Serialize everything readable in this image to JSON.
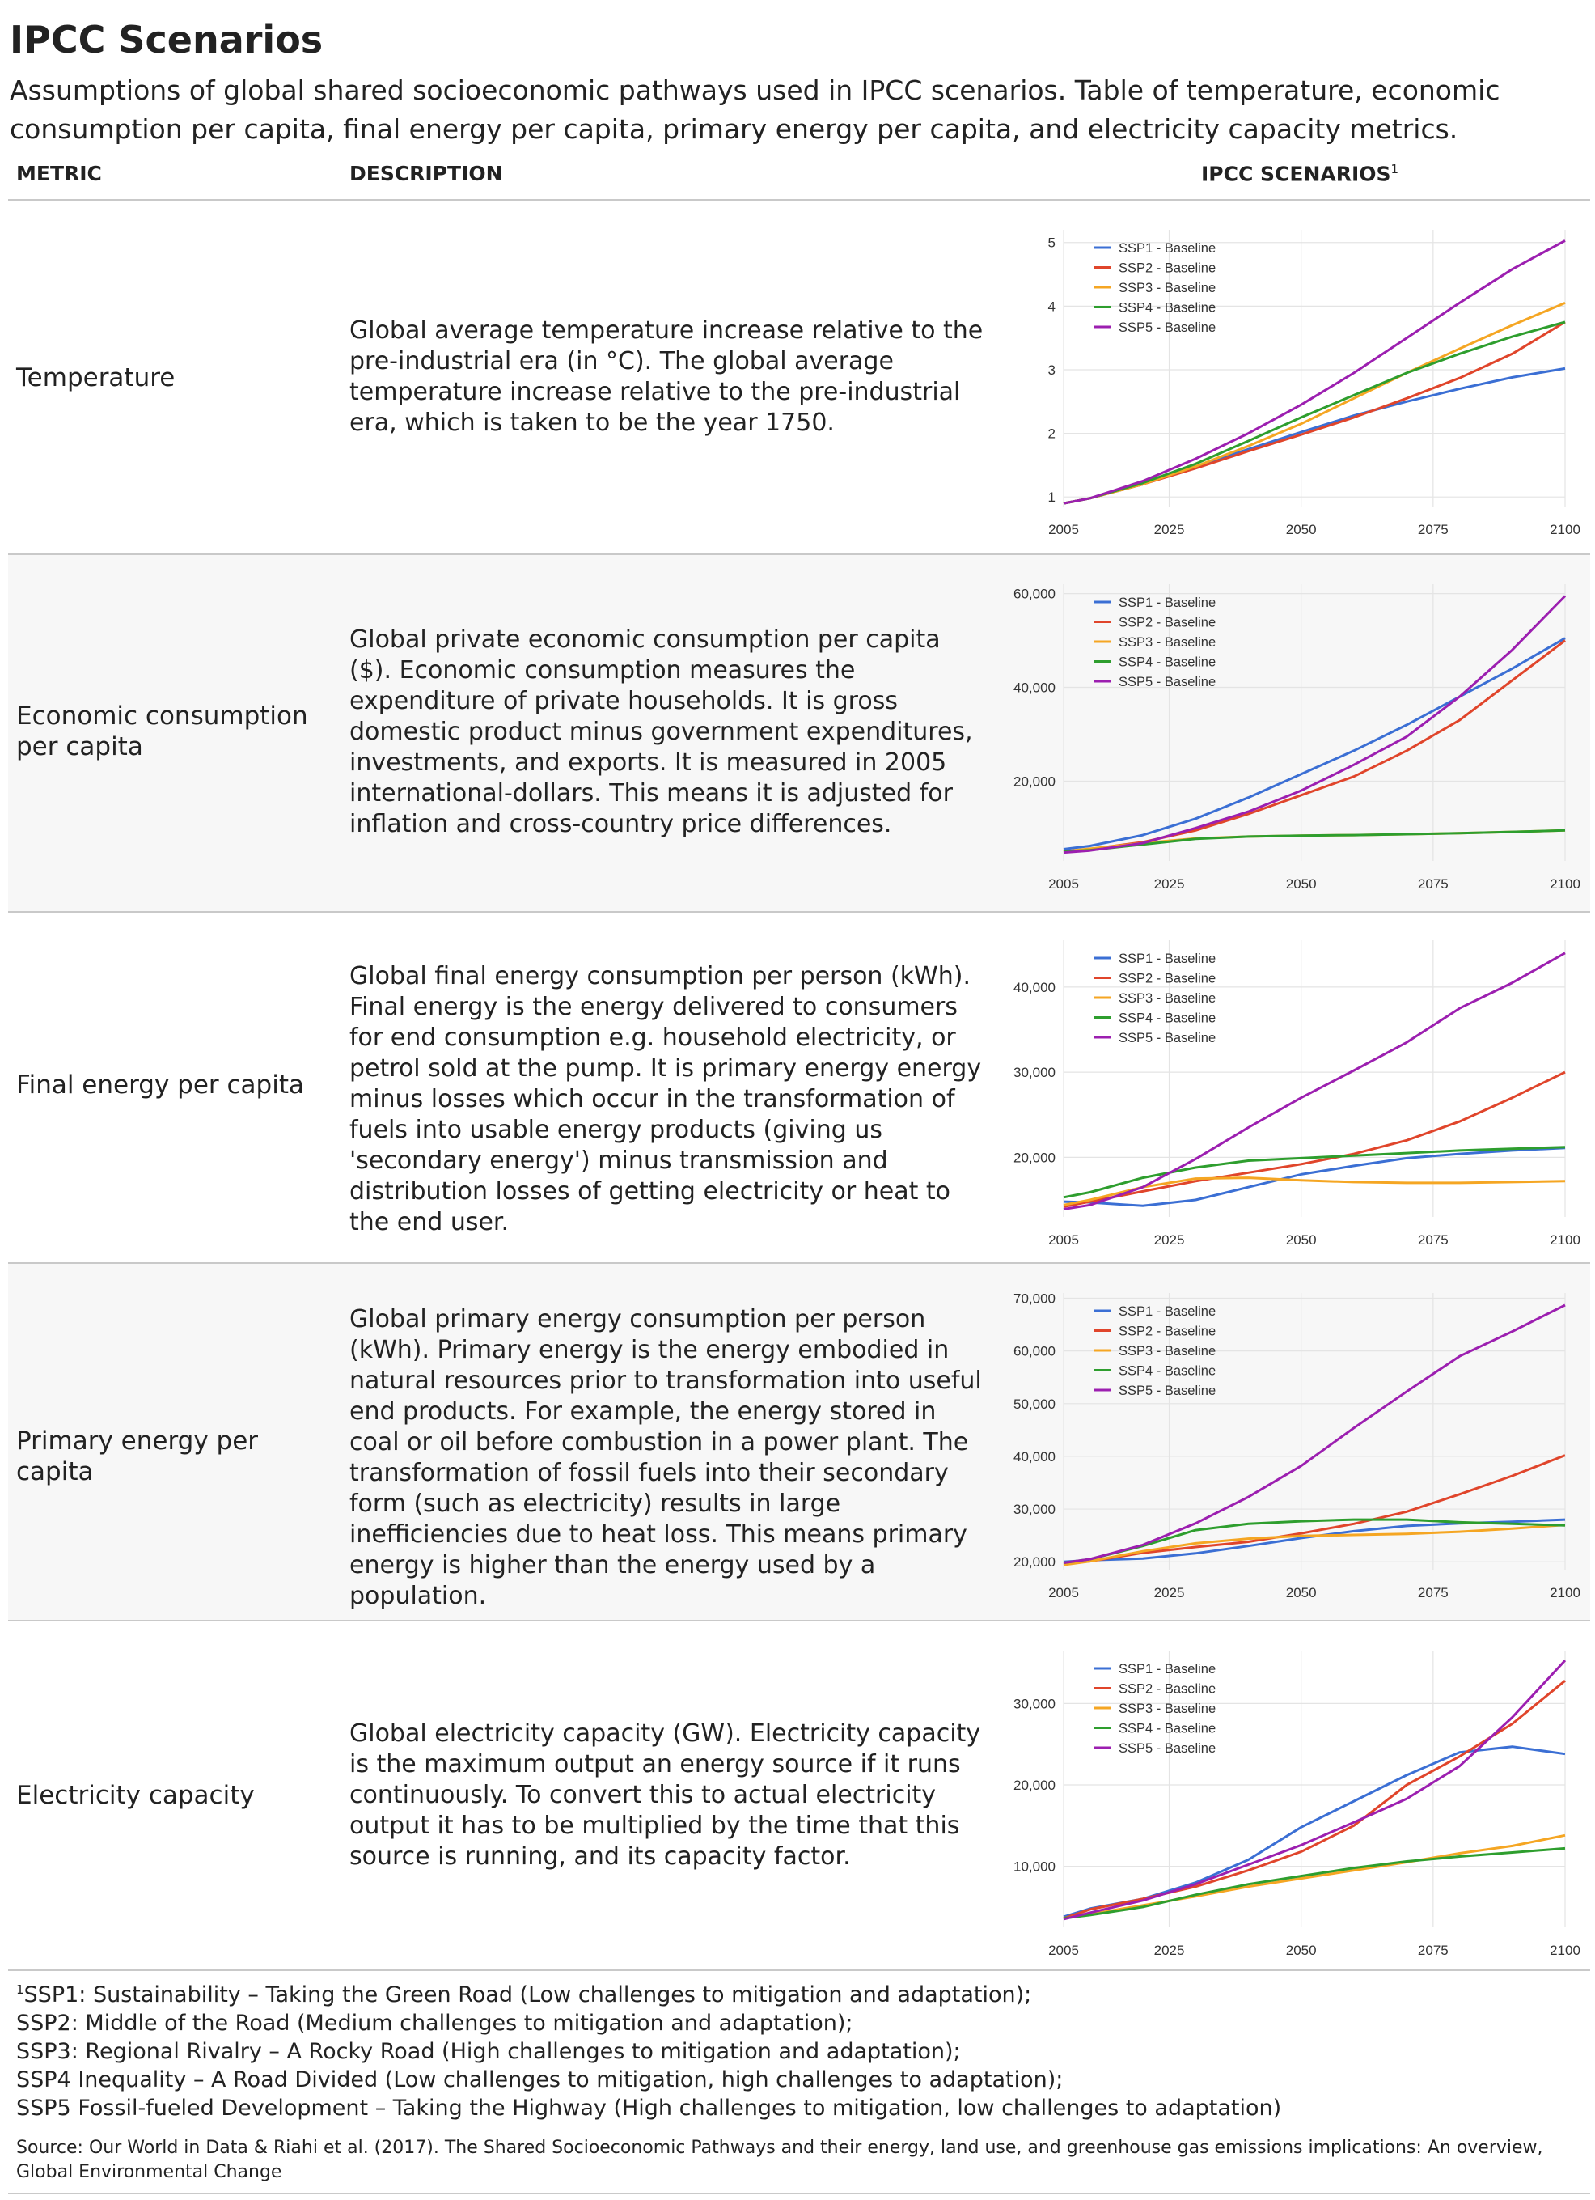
{
  "header": {
    "title": "IPCC Scenarios",
    "subtitle": "Assumptions of global shared socioeconomic pathways used in IPCC scenarios. Table of temperature, economic consumption per capita, final energy per capita, primary energy per capita, and electricity capacity metrics."
  },
  "columns": {
    "metric": "METRIC",
    "description": "DESCRIPTION",
    "scenarios": "IPCC SCENARIOS",
    "scenarios_sup": "1"
  },
  "colors": {
    "SSP1": "#3b6fd4",
    "SSP2": "#e0452b",
    "SSP3": "#f5a623",
    "SSP4": "#2e9e2e",
    "SSP5": "#9c1fb0",
    "grid": "#e4e4e4"
  },
  "rows": [
    {
      "metric": "Temperature",
      "description": "Global average temperature increase relative to the pre-industrial era (in °C). The global average temperature increase relative to the pre-industrial era, which is taken to be the year 1750."
    },
    {
      "metric": "Economic consumption per capita",
      "description": "Global private economic consumption per capita ($). Economic consumption measures the expenditure of private households. It is gross domestic product minus government expenditures, investments, and exports. It is measured in 2005 international-dollars. This means it is adjusted for inflation and cross-country price differences."
    },
    {
      "metric": "Final energy per capita",
      "description": "Global final energy consumption per person (kWh). Final energy is the energy delivered to consumers for end consumption e.g. household electricity, or petrol sold at the pump. It is primary energy energy minus losses which occur in the transformation of fuels into usable energy products (giving us 'secondary energy') minus transmission and distribution losses of getting electricity or heat to the end user."
    },
    {
      "metric": "Primary energy per capita",
      "description": "Global primary energy consumption per person (kWh). Primary energy is the energy embodied in natural resources prior to transformation into useful end products. For example, the energy stored in coal or oil before combustion in a power plant. The transformation of fossil fuels into their secondary form (such as electricity) results in large inefficiencies due to heat loss. This means primary energy is higher than the energy used by a population."
    },
    {
      "metric": "Electricity capacity",
      "description": "Global electricity capacity (GW). Electricity capacity is the maximum output an energy source if it runs continuously. To convert this to actual electricity output it has to be multiplied by the time that this source is running, and its capacity factor."
    }
  ],
  "footnote": {
    "marker": "1",
    "lines": [
      "SSP1: Sustainability – Taking the Green Road (Low challenges to mitigation and adaptation);",
      "SSP2: Middle of the Road (Medium challenges to mitigation and adaptation);",
      "SSP3: Regional Rivalry – A Rocky Road (High challenges to mitigation and adaptation);",
      "SSP4 Inequality – A Road Divided (Low challenges to mitigation, high challenges to adaptation);",
      "SSP5 Fossil-fueled Development – Taking the Highway (High challenges to mitigation, low challenges to adaptation)"
    ]
  },
  "source": "Source: Our World in Data & Riahi et al. (2017). The Shared Socioeconomic Pathways and their energy, land use, and greenhouse gas emissions implications: An overview, Global Environmental Change",
  "chart_data": [
    {
      "type": "line",
      "x": [
        2005,
        2010,
        2020,
        2030,
        2040,
        2050,
        2060,
        2070,
        2080,
        2090,
        2100
      ],
      "xlim": [
        2005,
        2100
      ],
      "xticks": [
        2005,
        2025,
        2050,
        2075,
        2100
      ],
      "xtick_labels": [
        "2005",
        "2025",
        "2050",
        "2075",
        "2100"
      ],
      "ylim": [
        0.85,
        5.2
      ],
      "yticks": [
        1,
        2,
        3,
        4,
        5
      ],
      "ytick_labels": [
        "1",
        "2",
        "3",
        "4",
        "5"
      ],
      "legend": "top-left",
      "grid": true,
      "series": [
        {
          "name": "SSP1 - Baseline",
          "values": [
            0.9,
            0.98,
            1.2,
            1.48,
            1.75,
            2.02,
            2.28,
            2.5,
            2.7,
            2.88,
            3.02
          ]
        },
        {
          "name": "SSP2 - Baseline",
          "values": [
            0.9,
            0.98,
            1.2,
            1.45,
            1.72,
            1.98,
            2.25,
            2.55,
            2.87,
            3.25,
            3.75
          ]
        },
        {
          "name": "SSP3 - Baseline",
          "values": [
            0.9,
            0.98,
            1.2,
            1.48,
            1.8,
            2.15,
            2.55,
            2.95,
            3.33,
            3.7,
            4.05
          ]
        },
        {
          "name": "SSP4 - Baseline",
          "values": [
            0.9,
            0.98,
            1.22,
            1.52,
            1.88,
            2.25,
            2.6,
            2.95,
            3.25,
            3.52,
            3.75
          ]
        },
        {
          "name": "SSP5 - Baseline",
          "values": [
            0.9,
            0.98,
            1.25,
            1.6,
            2.0,
            2.45,
            2.95,
            3.5,
            4.05,
            4.58,
            5.03
          ]
        }
      ]
    },
    {
      "type": "line",
      "x": [
        2005,
        2010,
        2020,
        2030,
        2040,
        2050,
        2060,
        2070,
        2080,
        2090,
        2100
      ],
      "xlim": [
        2005,
        2100
      ],
      "xticks": [
        2005,
        2025,
        2050,
        2075,
        2100
      ],
      "xtick_labels": [
        "2005",
        "2025",
        "2050",
        "2075",
        "2100"
      ],
      "ylim": [
        3000,
        62000
      ],
      "yticks": [
        20000,
        40000,
        60000
      ],
      "ytick_labels": [
        "20,000",
        "40,000",
        "60,000"
      ],
      "legend": "top-left",
      "grid": true,
      "series": [
        {
          "name": "SSP1 - Baseline",
          "values": [
            5500,
            6200,
            8500,
            12000,
            16500,
            21500,
            26500,
            32000,
            38000,
            44000,
            50500
          ]
        },
        {
          "name": "SSP2 - Baseline",
          "values": [
            5000,
            5500,
            7000,
            9500,
            13000,
            17000,
            21000,
            26500,
            33000,
            41500,
            50000
          ]
        },
        {
          "name": "SSP3 - Baseline",
          "values": [
            5000,
            5600,
            6800,
            7800,
            8200,
            8400,
            8500,
            8700,
            8900,
            9200,
            9500
          ]
        },
        {
          "name": "SSP4 - Baseline",
          "values": [
            5000,
            5300,
            6500,
            7700,
            8200,
            8400,
            8500,
            8700,
            8900,
            9200,
            9500
          ]
        },
        {
          "name": "SSP5 - Baseline",
          "values": [
            4800,
            5200,
            6800,
            10000,
            13500,
            18000,
            23500,
            29500,
            38000,
            48000,
            59500
          ]
        }
      ]
    },
    {
      "type": "line",
      "x": [
        2005,
        2010,
        2020,
        2030,
        2040,
        2050,
        2060,
        2070,
        2080,
        2090,
        2100
      ],
      "xlim": [
        2005,
        2100
      ],
      "xticks": [
        2005,
        2025,
        2050,
        2075,
        2100
      ],
      "xtick_labels": [
        "2005",
        "2025",
        "2050",
        "2075",
        "2100"
      ],
      "ylim": [
        13000,
        45500
      ],
      "yticks": [
        20000,
        30000,
        40000
      ],
      "ytick_labels": [
        "20,000",
        "30,000",
        "40,000"
      ],
      "legend": "top-left",
      "grid": true,
      "series": [
        {
          "name": "SSP1 - Baseline",
          "values": [
            14800,
            14700,
            14300,
            15000,
            16500,
            18000,
            19000,
            19900,
            20400,
            20800,
            21100
          ]
        },
        {
          "name": "SSP2 - Baseline",
          "values": [
            14200,
            14800,
            16000,
            17200,
            18200,
            19200,
            20400,
            22000,
            24200,
            27000,
            30000
          ]
        },
        {
          "name": "SSP3 - Baseline",
          "values": [
            14400,
            15000,
            16500,
            17500,
            17600,
            17300,
            17100,
            17000,
            17000,
            17100,
            17200
          ]
        },
        {
          "name": "SSP4 - Baseline",
          "values": [
            15300,
            15900,
            17600,
            18800,
            19600,
            19900,
            20200,
            20500,
            20800,
            21000,
            21200
          ]
        },
        {
          "name": "SSP5 - Baseline",
          "values": [
            13900,
            14400,
            16500,
            19800,
            23500,
            27000,
            30200,
            33500,
            37500,
            40500,
            44000
          ]
        }
      ]
    },
    {
      "type": "line",
      "x": [
        2005,
        2010,
        2020,
        2030,
        2040,
        2050,
        2060,
        2070,
        2080,
        2090,
        2100
      ],
      "xlim": [
        2005,
        2100
      ],
      "xticks": [
        2005,
        2025,
        2050,
        2075,
        2100
      ],
      "xtick_labels": [
        "2005",
        "2025",
        "2050",
        "2075",
        "2100"
      ],
      "ylim": [
        18500,
        71000
      ],
      "yticks": [
        20000,
        30000,
        40000,
        50000,
        60000,
        70000
      ],
      "ytick_labels": [
        "20,000",
        "30,000",
        "40,000",
        "50,000",
        "60,000",
        "70,000"
      ],
      "legend": "top-left",
      "grid": true,
      "series": [
        {
          "name": "SSP1 - Baseline",
          "values": [
            20000,
            20300,
            20600,
            21600,
            23000,
            24500,
            25800,
            26800,
            27300,
            27600,
            28000
          ]
        },
        {
          "name": "SSP2 - Baseline",
          "values": [
            19600,
            20100,
            21700,
            22800,
            23800,
            25400,
            27200,
            29500,
            32800,
            36300,
            40200
          ]
        },
        {
          "name": "SSP3 - Baseline",
          "values": [
            19400,
            20100,
            22000,
            23500,
            24400,
            24900,
            25100,
            25300,
            25700,
            26300,
            27000
          ]
        },
        {
          "name": "SSP4 - Baseline",
          "values": [
            19800,
            20500,
            23000,
            26000,
            27200,
            27700,
            28000,
            28000,
            27500,
            27200,
            26900
          ]
        },
        {
          "name": "SSP5 - Baseline",
          "values": [
            19800,
            20500,
            23200,
            27300,
            32300,
            38200,
            45400,
            52300,
            59000,
            63700,
            68700
          ]
        }
      ]
    },
    {
      "type": "line",
      "x": [
        2005,
        2010,
        2020,
        2030,
        2040,
        2050,
        2060,
        2070,
        2080,
        2090,
        2100
      ],
      "xlim": [
        2005,
        2100
      ],
      "xticks": [
        2005,
        2025,
        2050,
        2075,
        2100
      ],
      "xtick_labels": [
        "2005",
        "2025",
        "2050",
        "2075",
        "2100"
      ],
      "ylim": [
        2500,
        36500
      ],
      "yticks": [
        10000,
        20000,
        30000
      ],
      "ytick_labels": [
        "10,000",
        "20,000",
        "30,000"
      ],
      "legend": "top-left",
      "grid": true,
      "series": [
        {
          "name": "SSP1 - Baseline",
          "values": [
            3800,
            4800,
            6000,
            8000,
            10800,
            14800,
            18000,
            21200,
            24000,
            24700,
            23800
          ]
        },
        {
          "name": "SSP2 - Baseline",
          "values": [
            3600,
            4700,
            6000,
            7500,
            9500,
            11800,
            15000,
            20000,
            23500,
            27500,
            32800
          ]
        },
        {
          "name": "SSP3 - Baseline",
          "values": [
            3600,
            4100,
            5200,
            6300,
            7500,
            8500,
            9500,
            10500,
            11600,
            12500,
            13800
          ]
        },
        {
          "name": "SSP4 - Baseline",
          "values": [
            3600,
            4000,
            5000,
            6500,
            7800,
            8800,
            9800,
            10600,
            11200,
            11700,
            12200
          ]
        },
        {
          "name": "SSP5 - Baseline",
          "values": [
            3500,
            4300,
            5800,
            7800,
            10200,
            12600,
            15400,
            18300,
            22300,
            28300,
            35300
          ]
        }
      ]
    }
  ]
}
